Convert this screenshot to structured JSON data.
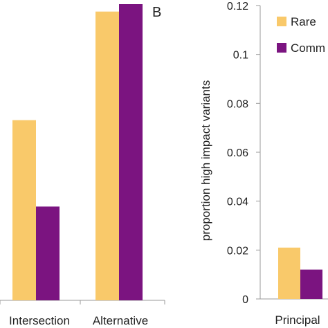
{
  "chart_data": [
    {
      "type": "bar",
      "categories": [
        "Intersection",
        "Alternative"
      ],
      "series": [
        {
          "values": [
            0.073,
            0.117
          ],
          "color": "#F9C96A"
        },
        {
          "values": [
            0.038,
            0.12
          ],
          "color": "#7B1480"
        }
      ],
      "ylim": [
        0,
        0.12
      ],
      "grid": false
    },
    {
      "type": "bar",
      "panel_label": "B",
      "categories": [
        "Principal"
      ],
      "series": [
        {
          "name": "Rare",
          "values": [
            0.021
          ],
          "color": "#F9C96A"
        },
        {
          "name": "Comm",
          "values": [
            0.012
          ],
          "color": "#7B1480"
        }
      ],
      "ylabel": "proportion high impact variants",
      "yticks": [
        "0",
        "0.02",
        "0.04",
        "0.06",
        "0.08",
        "0.1",
        "0.12"
      ],
      "ylim": [
        0,
        0.12
      ],
      "legend": "top-right",
      "grid": false
    }
  ]
}
